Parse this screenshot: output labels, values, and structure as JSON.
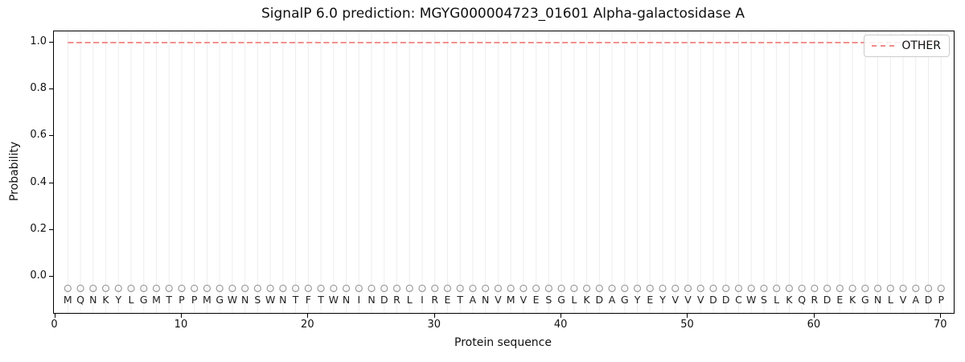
{
  "chart_data": {
    "type": "line",
    "title": "SignalP 6.0 prediction: MGYG000004723_01601 Alpha-galactosidase A",
    "xlabel": "Protein sequence",
    "ylabel": "Probability",
    "xlim": [
      -0.1,
      71
    ],
    "ylim": [
      -0.155,
      1.048
    ],
    "x_ticks": [
      "0",
      "10",
      "20",
      "30",
      "40",
      "50",
      "60",
      "70"
    ],
    "y_ticks": [
      "0.0",
      "0.2",
      "0.4",
      "0.6",
      "0.8",
      "1.0"
    ],
    "grid": {
      "vertical_line_per_residue": true,
      "horizontal": false
    },
    "legend": {
      "position": "upper right"
    },
    "series": [
      {
        "name": "OTHER",
        "style": "dashed",
        "x_start": 1,
        "x_end": 70,
        "y_constant": 1.0,
        "note": "flat dashed probability line at 1.0 for every residue 1-70"
      }
    ],
    "sequence": "MQNKYLGMTPPMGWNSWNTFTWNINDRLIRETANVMVESGLKDAGYEYVVVDDCWSLKQRDEKGNLVADP",
    "residue_markers": {
      "y": -0.05,
      "marker": "open-circle",
      "one_per_residue": true
    }
  },
  "colors": {
    "background": "#ffffff",
    "axis": "#000000",
    "grid": "#ededed",
    "other_line": "#f08a8a",
    "marker_stroke": "#9a9a9a",
    "text": "#111111",
    "legend_border": "#cccccc"
  }
}
